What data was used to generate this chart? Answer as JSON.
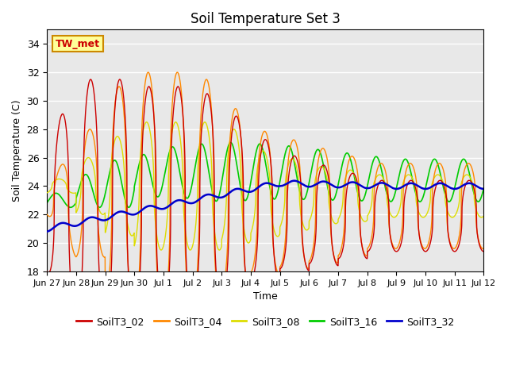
{
  "title": "Soil Temperature Set 3",
  "xlabel": "Time",
  "ylabel": "Soil Temperature (C)",
  "ylim": [
    18,
    35
  ],
  "yticks": [
    18,
    20,
    22,
    24,
    26,
    28,
    30,
    32,
    34
  ],
  "background_color": "#e8e8e8",
  "annotation_text": "TW_met",
  "annotation_color": "#cc0000",
  "annotation_bg": "#ffff99",
  "annotation_border": "#cc8800",
  "series_colors": {
    "SoilT3_02": "#cc0000",
    "SoilT3_04": "#ff8800",
    "SoilT3_08": "#dddd00",
    "SoilT3_16": "#00cc00",
    "SoilT3_32": "#0000cc"
  },
  "legend_labels": [
    "SoilT3_02",
    "SoilT3_04",
    "SoilT3_08",
    "SoilT3_16",
    "SoilT3_32"
  ],
  "xtick_labels": [
    "Jun 27",
    "Jun 28",
    "Jun 29",
    "Jun 30",
    "Jul 1",
    "Jul 2",
    "Jul 3",
    "Jul 4",
    "Jul 5",
    "Jul 6",
    "Jul 7",
    "Jul 8",
    "Jul 9",
    "Jul 10",
    "Jul 11",
    "Jul 12"
  ],
  "xtick_positions": [
    0,
    1,
    2,
    3,
    4,
    5,
    6,
    7,
    8,
    9,
    10,
    11,
    12,
    13,
    14,
    15
  ]
}
